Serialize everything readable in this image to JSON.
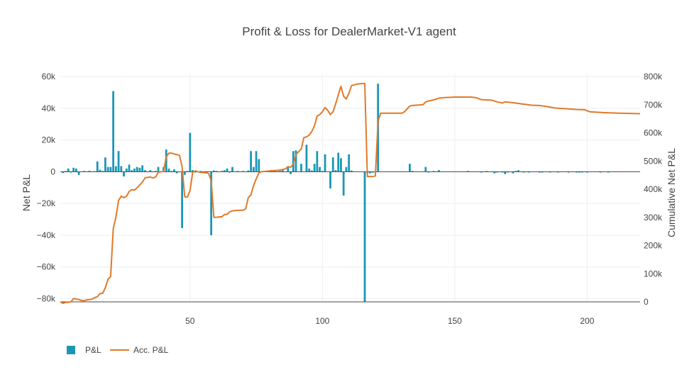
{
  "colors": {
    "bar": "#1b97b5",
    "line": "#e07a2a",
    "grid": "#eeeeee",
    "zero": "#444444",
    "text": "#444444"
  },
  "chart_data": {
    "type": "bar",
    "title": "Profit & Loss for DealerMarket-V1 agent",
    "xlabel": "",
    "ylabel": "Net P&L",
    "y2label": "Cumulative Net P&L",
    "xlim": [
      1,
      220
    ],
    "ylim": [
      -82000,
      60000
    ],
    "y2lim": [
      0,
      800000
    ],
    "x_ticks": [
      50,
      100,
      150,
      200
    ],
    "x_tick_labels": [
      "50",
      "100",
      "150",
      "200"
    ],
    "y_ticks": [
      -80000,
      -60000,
      -40000,
      -20000,
      0,
      20000,
      40000,
      60000
    ],
    "y_tick_labels": [
      "−80k",
      "−60k",
      "−40k",
      "−20k",
      "0",
      "20k",
      "40k",
      "60k"
    ],
    "y2_ticks": [
      0,
      100000,
      200000,
      300000,
      400000,
      500000,
      600000,
      700000,
      800000
    ],
    "y2_tick_labels": [
      "0",
      "100k",
      "200k",
      "300k",
      "400k",
      "500k",
      "600k",
      "700k",
      "800k"
    ],
    "grid": true,
    "legend_position": "bottom-left",
    "series": [
      {
        "name": "P&L",
        "type": "bar",
        "axis": "y",
        "points": [
          [
            2,
            -800
          ],
          [
            3,
            500
          ],
          [
            4,
            2000
          ],
          [
            5,
            -500
          ],
          [
            6,
            2500
          ],
          [
            7,
            2000
          ],
          [
            8,
            -2000
          ],
          [
            10,
            500
          ],
          [
            12,
            600
          ],
          [
            14,
            300
          ],
          [
            15,
            6500
          ],
          [
            16,
            1200
          ],
          [
            17,
            500
          ],
          [
            18,
            9000
          ],
          [
            19,
            3000
          ],
          [
            20,
            3000
          ],
          [
            21,
            50800
          ],
          [
            22,
            3500
          ],
          [
            23,
            13000
          ],
          [
            24,
            3500
          ],
          [
            25,
            -3000
          ],
          [
            26,
            2000
          ],
          [
            27,
            4500
          ],
          [
            28,
            1000
          ],
          [
            29,
            2000
          ],
          [
            30,
            3000
          ],
          [
            31,
            2500
          ],
          [
            32,
            4000
          ],
          [
            33,
            1000
          ],
          [
            35,
            1000
          ],
          [
            37,
            500
          ],
          [
            38,
            3000
          ],
          [
            40,
            3000
          ],
          [
            41,
            14000
          ],
          [
            42,
            2000
          ],
          [
            43,
            500
          ],
          [
            44,
            1500
          ],
          [
            45,
            -1000
          ],
          [
            47,
            -35500
          ],
          [
            48,
            -2000
          ],
          [
            49,
            500
          ],
          [
            50,
            24500
          ],
          [
            51,
            1000
          ],
          [
            52,
            -500
          ],
          [
            54,
            500
          ],
          [
            56,
            -1000
          ],
          [
            58,
            -40000
          ],
          [
            59,
            800
          ],
          [
            60,
            500
          ],
          [
            62,
            500
          ],
          [
            63,
            1000
          ],
          [
            64,
            2000
          ],
          [
            65,
            -500
          ],
          [
            66,
            3000
          ],
          [
            68,
            500
          ],
          [
            70,
            500
          ],
          [
            72,
            800
          ],
          [
            73,
            13000
          ],
          [
            74,
            3000
          ],
          [
            75,
            13000
          ],
          [
            76,
            8000
          ],
          [
            80,
            500
          ],
          [
            82,
            500
          ],
          [
            84,
            500
          ],
          [
            85,
            1000
          ],
          [
            87,
            3500
          ],
          [
            88,
            -1500
          ],
          [
            89,
            13000
          ],
          [
            90,
            13500
          ],
          [
            92,
            5000
          ],
          [
            94,
            17000
          ],
          [
            95,
            2000
          ],
          [
            96,
            800
          ],
          [
            97,
            5000
          ],
          [
            98,
            13000
          ],
          [
            99,
            3000
          ],
          [
            100,
            500
          ],
          [
            101,
            11000
          ],
          [
            103,
            -10500
          ],
          [
            104,
            9000
          ],
          [
            105,
            1000
          ],
          [
            106,
            12000
          ],
          [
            107,
            8500
          ],
          [
            108,
            -15000
          ],
          [
            109,
            3000
          ],
          [
            110,
            11000
          ],
          [
            111,
            800
          ],
          [
            116,
            -82000
          ],
          [
            117,
            -1000
          ],
          [
            118,
            -1000
          ],
          [
            119,
            -500
          ],
          [
            120,
            -500
          ],
          [
            121,
            55500
          ],
          [
            133,
            5000
          ],
          [
            134,
            500
          ],
          [
            139,
            3000
          ],
          [
            140,
            -500
          ],
          [
            142,
            500
          ],
          [
            144,
            1000
          ],
          [
            155,
            500
          ],
          [
            160,
            -500
          ],
          [
            162,
            500
          ],
          [
            165,
            -1000
          ],
          [
            166,
            -500
          ],
          [
            168,
            -500
          ],
          [
            169,
            -1500
          ],
          [
            170,
            -500
          ],
          [
            172,
            -1000
          ],
          [
            173,
            500
          ],
          [
            174,
            1000
          ],
          [
            176,
            -500
          ],
          [
            178,
            -500
          ],
          [
            182,
            -500
          ],
          [
            183,
            -500
          ],
          [
            186,
            -500
          ],
          [
            189,
            -500
          ],
          [
            193,
            -500
          ],
          [
            196,
            -500
          ],
          [
            197,
            -500
          ],
          [
            198,
            -500
          ],
          [
            200,
            -500
          ],
          [
            205,
            -500
          ],
          [
            208,
            -500
          ]
        ]
      },
      {
        "name": "Acc. P&L",
        "type": "line",
        "axis": "y2",
        "points": [
          [
            1,
            0
          ],
          [
            2,
            -5000
          ],
          [
            3,
            -2000
          ],
          [
            4,
            -2000
          ],
          [
            5,
            0
          ],
          [
            6,
            12000
          ],
          [
            7,
            10000
          ],
          [
            8,
            8000
          ],
          [
            9,
            5000
          ],
          [
            10,
            4000
          ],
          [
            11,
            7000
          ],
          [
            12,
            8000
          ],
          [
            13,
            10000
          ],
          [
            14,
            15000
          ],
          [
            15,
            18000
          ],
          [
            16,
            30000
          ],
          [
            17,
            30000
          ],
          [
            18,
            50000
          ],
          [
            19,
            80000
          ],
          [
            20,
            90000
          ],
          [
            21,
            260000
          ],
          [
            22,
            300000
          ],
          [
            23,
            360000
          ],
          [
            24,
            375000
          ],
          [
            25,
            370000
          ],
          [
            26,
            375000
          ],
          [
            27,
            392000
          ],
          [
            28,
            398000
          ],
          [
            29,
            397000
          ],
          [
            30,
            405000
          ],
          [
            31,
            415000
          ],
          [
            32,
            425000
          ],
          [
            33,
            440000
          ],
          [
            34,
            442000
          ],
          [
            35,
            443000
          ],
          [
            36,
            440000
          ],
          [
            37,
            443000
          ],
          [
            38,
            460000
          ],
          [
            39,
            462000
          ],
          [
            40,
            463000
          ],
          [
            41,
            515000
          ],
          [
            42,
            528000
          ],
          [
            43,
            528000
          ],
          [
            44,
            525000
          ],
          [
            45,
            523000
          ],
          [
            46,
            520000
          ],
          [
            47,
            480000
          ],
          [
            48,
            373000
          ],
          [
            49,
            372000
          ],
          [
            50,
            395000
          ],
          [
            51,
            460000
          ],
          [
            52,
            465000
          ],
          [
            53,
            462000
          ],
          [
            54,
            460000
          ],
          [
            55,
            459000
          ],
          [
            56,
            458000
          ],
          [
            57,
            456000
          ],
          [
            58,
            430000
          ],
          [
            59,
            300000
          ],
          [
            60,
            300000
          ],
          [
            61,
            302000
          ],
          [
            62,
            302000
          ],
          [
            63,
            310000
          ],
          [
            64,
            311000
          ],
          [
            65,
            320000
          ],
          [
            66,
            323000
          ],
          [
            67,
            324000
          ],
          [
            68,
            325000
          ],
          [
            69,
            325000
          ],
          [
            70,
            325000
          ],
          [
            71,
            330000
          ],
          [
            72,
            370000
          ],
          [
            73,
            380000
          ],
          [
            74,
            413000
          ],
          [
            75,
            437000
          ],
          [
            76,
            458000
          ],
          [
            77,
            462000
          ],
          [
            78,
            463000
          ],
          [
            79,
            464000
          ],
          [
            80,
            465000
          ],
          [
            81,
            466000
          ],
          [
            82,
            466000
          ],
          [
            83,
            467000
          ],
          [
            84,
            468000
          ],
          [
            85,
            470000
          ],
          [
            86,
            472000
          ],
          [
            87,
            480000
          ],
          [
            88,
            478000
          ],
          [
            89,
            490000
          ],
          [
            90,
            523000
          ],
          [
            91,
            533000
          ],
          [
            92,
            543000
          ],
          [
            93,
            583000
          ],
          [
            94,
            586000
          ],
          [
            95,
            592000
          ],
          [
            96,
            605000
          ],
          [
            97,
            625000
          ],
          [
            98,
            660000
          ],
          [
            99,
            665000
          ],
          [
            100,
            675000
          ],
          [
            101,
            690000
          ],
          [
            102,
            680000
          ],
          [
            103,
            665000
          ],
          [
            104,
            675000
          ],
          [
            105,
            703000
          ],
          [
            106,
            735000
          ],
          [
            107,
            765000
          ],
          [
            108,
            730000
          ],
          [
            109,
            720000
          ],
          [
            110,
            740000
          ],
          [
            111,
            768000
          ],
          [
            112,
            770000
          ],
          [
            113,
            773000
          ],
          [
            114,
            774000
          ],
          [
            115,
            775000
          ],
          [
            116,
            775000
          ],
          [
            117,
            445000
          ],
          [
            118,
            445000
          ],
          [
            119,
            445000
          ],
          [
            120,
            447000
          ],
          [
            121,
            640000
          ],
          [
            122,
            670000
          ],
          [
            130,
            670000
          ],
          [
            131,
            675000
          ],
          [
            132,
            685000
          ],
          [
            133,
            695000
          ],
          [
            134,
            697000
          ],
          [
            138,
            700000
          ],
          [
            139,
            710000
          ],
          [
            140,
            713000
          ],
          [
            142,
            717000
          ],
          [
            144,
            723000
          ],
          [
            146,
            725000
          ],
          [
            150,
            727000
          ],
          [
            156,
            727000
          ],
          [
            158,
            725000
          ],
          [
            160,
            718000
          ],
          [
            164,
            716000
          ],
          [
            166,
            710000
          ],
          [
            168,
            706000
          ],
          [
            169,
            710000
          ],
          [
            172,
            707000
          ],
          [
            176,
            702000
          ],
          [
            179,
            698000
          ],
          [
            182,
            697000
          ],
          [
            185,
            693000
          ],
          [
            188,
            688000
          ],
          [
            191,
            686000
          ],
          [
            196,
            683000
          ],
          [
            199,
            682000
          ],
          [
            201,
            675000
          ],
          [
            206,
            672000
          ],
          [
            212,
            670000
          ],
          [
            220,
            668000
          ]
        ]
      }
    ]
  }
}
